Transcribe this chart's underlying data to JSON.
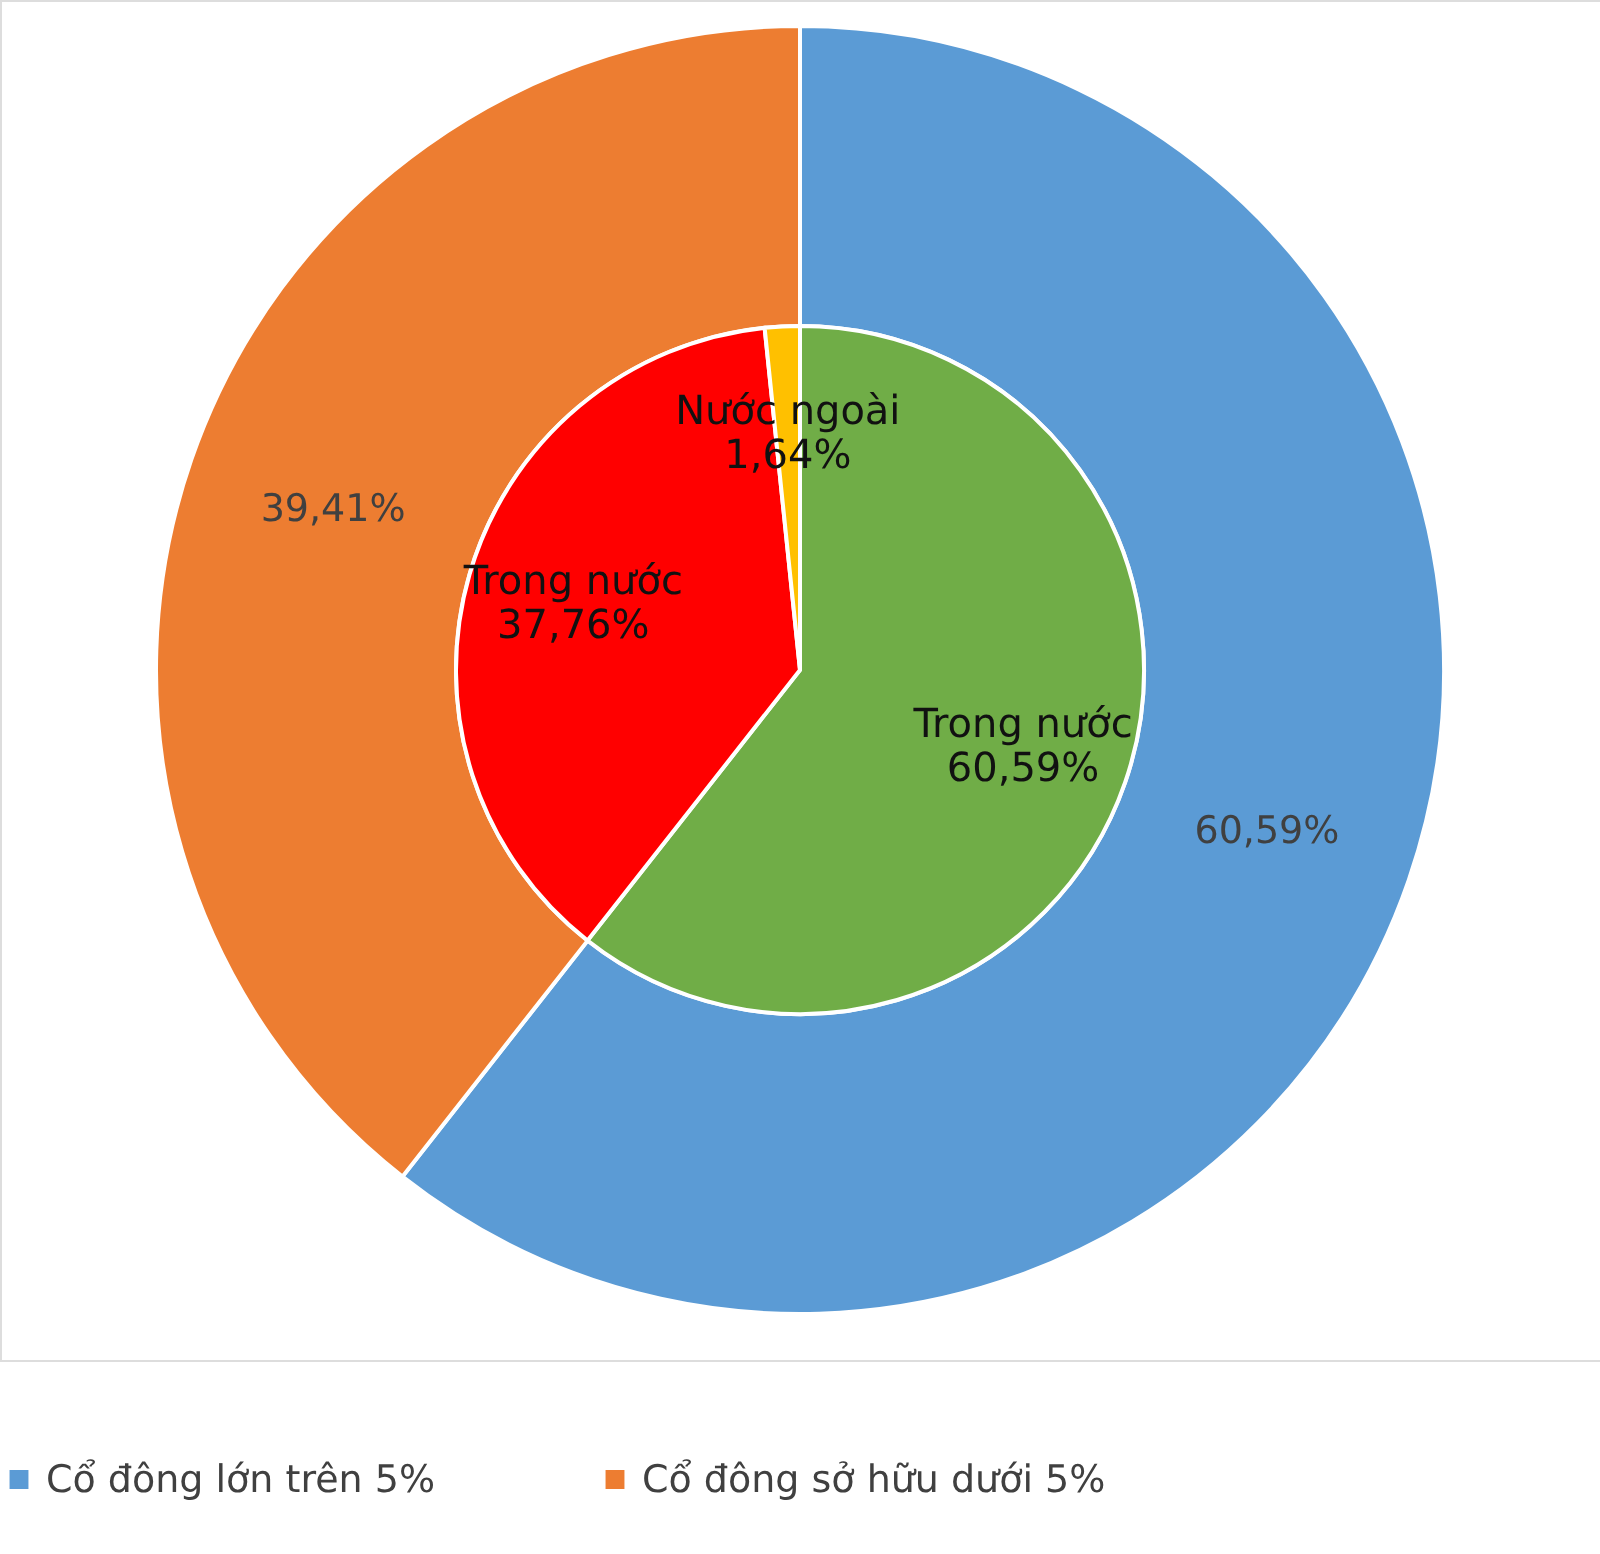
{
  "chart_data": [
    {
      "type": "donut",
      "categories": [
        "Cổ đông lớn trên 5%",
        "Cổ đông sở hữu dưới 5%"
      ],
      "values": [
        60.59,
        39.41
      ],
      "colors": [
        "#5b9bd5",
        "#ed7d31"
      ],
      "value_labels": [
        "60,59%",
        "39,41%"
      ],
      "legend": "bottom"
    },
    {
      "type": "pie",
      "categories": [
        "Trong nước",
        "Trong nước",
        "Nước ngoài"
      ],
      "values": [
        60.59,
        37.76,
        1.64
      ],
      "colors": [
        "#70ad47",
        "#ff0000",
        "#ffc000"
      ],
      "value_labels": [
        "60,59%",
        "37,76%",
        "1,64%"
      ]
    }
  ]
}
